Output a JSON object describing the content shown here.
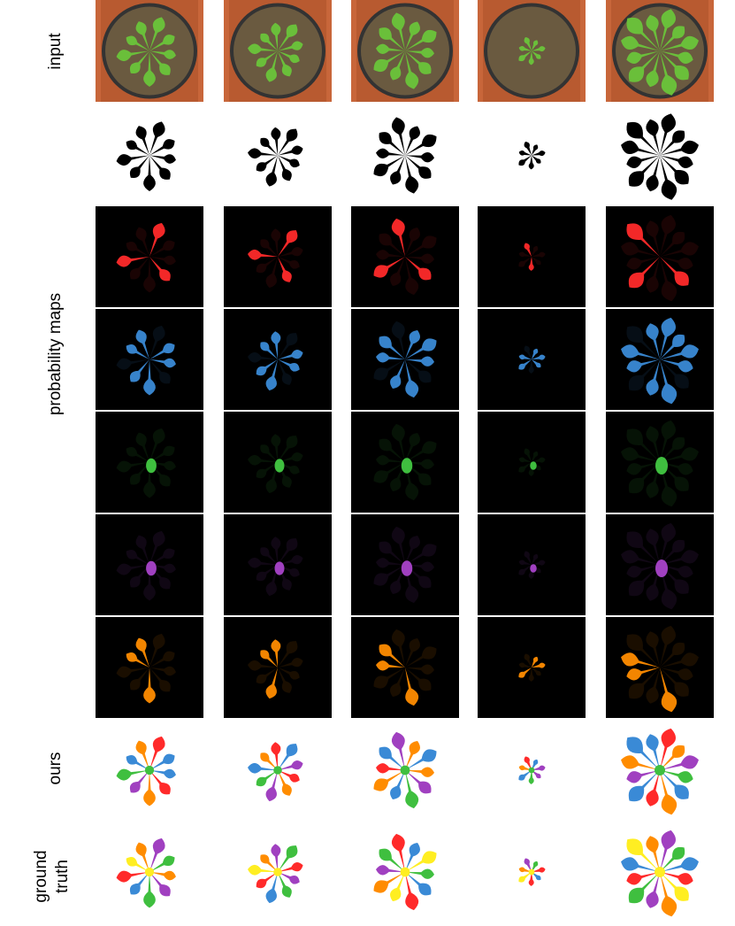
{
  "labels": {
    "input": "input",
    "probability_maps": "probability maps",
    "ours": "ours",
    "ground_truth_line1": "ground",
    "ground_truth_line2": "truth"
  },
  "colors": {
    "background_dark": "#000000",
    "red": "#ff2a2a",
    "blue": "#3a8ad6",
    "green": "#3fbf3f",
    "purple": "#a040c0",
    "orange": "#ff8c00",
    "yellow": "#ffee22",
    "pot": "#c8663a",
    "soil": "#6a5a40",
    "leaf": "#6abf3a"
  },
  "columns": [
    {
      "leaves": 9,
      "size": 0.78,
      "rot": 10
    },
    {
      "leaves": 9,
      "size": 0.7,
      "rot": 25
    },
    {
      "leaves": 10,
      "size": 0.85,
      "rot": 5
    },
    {
      "leaves": 7,
      "size": 0.35,
      "rot": 40
    },
    {
      "leaves": 12,
      "size": 1.0,
      "rot": 15
    }
  ]
}
